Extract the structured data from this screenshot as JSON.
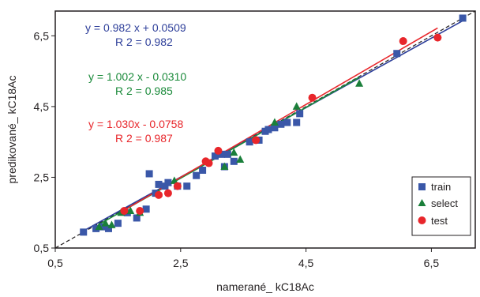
{
  "chart_data": {
    "type": "scatter",
    "xlabel": "namerané_ kC18Ac",
    "ylabel": "predikované_ kC18Ac",
    "xlim": [
      0.5,
      7.2
    ],
    "ylim": [
      0.5,
      7.2
    ],
    "x_ticks": [
      "0,5",
      "2,5",
      "4,5",
      "6,5"
    ],
    "y_ticks": [
      "0,5",
      "2,5",
      "4,5",
      "6,5"
    ],
    "x_tick_values": [
      0.5,
      2.5,
      4.5,
      6.5
    ],
    "y_tick_values": [
      0.5,
      2.5,
      4.5,
      6.5
    ],
    "grid": false,
    "legend_position": "bottom-right",
    "equations": [
      {
        "series": "train",
        "equation": "y = 0.982 x + 0.0509",
        "r2": "R 2 = 0.982",
        "color": "#2e3f9a",
        "slope": 0.982,
        "intercept": 0.0509
      },
      {
        "series": "select",
        "equation": "y = 1.002 x - 0.0310",
        "r2": "R 2 = 0.985",
        "color": "#1a8a3a",
        "slope": 1.002,
        "intercept": -0.031
      },
      {
        "series": "test",
        "equation": "y = 1.030x - 0.0758",
        "r2": "R 2 = 0.987",
        "color": "#e8262b",
        "slope": 1.03,
        "intercept": -0.0758
      }
    ],
    "identity_line": {
      "style": "dashed",
      "color": "#231f20"
    },
    "series": [
      {
        "name": "train",
        "marker": "square",
        "color": "#3a57a8",
        "points": [
          [
            0.95,
            0.95
          ],
          [
            1.15,
            1.05
          ],
          [
            1.25,
            1.1
          ],
          [
            1.35,
            1.05
          ],
          [
            1.5,
            1.2
          ],
          [
            1.65,
            1.5
          ],
          [
            1.8,
            1.35
          ],
          [
            1.95,
            1.6
          ],
          [
            2.0,
            2.6
          ],
          [
            2.1,
            2.05
          ],
          [
            2.15,
            2.3
          ],
          [
            2.25,
            2.25
          ],
          [
            2.3,
            2.35
          ],
          [
            2.45,
            2.25
          ],
          [
            2.6,
            2.25
          ],
          [
            2.75,
            2.55
          ],
          [
            2.85,
            2.7
          ],
          [
            3.05,
            3.1
          ],
          [
            3.15,
            3.15
          ],
          [
            3.2,
            2.8
          ],
          [
            3.25,
            3.15
          ],
          [
            3.35,
            2.95
          ],
          [
            3.6,
            3.5
          ],
          [
            3.75,
            3.55
          ],
          [
            3.85,
            3.8
          ],
          [
            3.9,
            3.85
          ],
          [
            4.0,
            3.9
          ],
          [
            4.1,
            4.0
          ],
          [
            4.2,
            4.05
          ],
          [
            4.35,
            4.05
          ],
          [
            4.4,
            4.3
          ],
          [
            5.95,
            6.0
          ],
          [
            7.0,
            7.0
          ]
        ]
      },
      {
        "name": "select",
        "marker": "triangle",
        "color": "#1a7f3a",
        "points": [
          [
            1.2,
            1.1
          ],
          [
            1.3,
            1.2
          ],
          [
            1.4,
            1.15
          ],
          [
            1.55,
            1.5
          ],
          [
            1.7,
            1.55
          ],
          [
            1.85,
            1.5
          ],
          [
            2.15,
            2.05
          ],
          [
            2.4,
            2.4
          ],
          [
            3.2,
            2.8
          ],
          [
            3.35,
            3.2
          ],
          [
            3.45,
            3.0
          ],
          [
            4.0,
            4.05
          ],
          [
            4.35,
            4.5
          ],
          [
            5.35,
            5.15
          ]
        ]
      },
      {
        "name": "test",
        "marker": "circle",
        "color": "#e8262b",
        "points": [
          [
            1.6,
            1.55
          ],
          [
            1.85,
            1.55
          ],
          [
            2.15,
            2.0
          ],
          [
            2.3,
            2.05
          ],
          [
            2.45,
            2.25
          ],
          [
            2.9,
            2.95
          ],
          [
            2.95,
            2.9
          ],
          [
            3.1,
            3.25
          ],
          [
            3.7,
            3.55
          ],
          [
            4.6,
            4.75
          ],
          [
            6.05,
            6.35
          ],
          [
            6.6,
            6.45
          ]
        ]
      }
    ]
  }
}
